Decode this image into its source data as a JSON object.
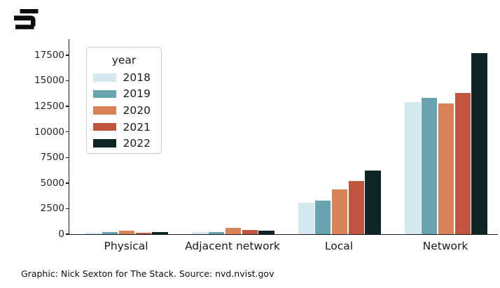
{
  "logo": {
    "label": "The Stack logo"
  },
  "chart_data": {
    "type": "bar",
    "title": "",
    "xlabel": "",
    "ylabel": "",
    "categories": [
      "Physical",
      "Adjacent network",
      "Local",
      "Network"
    ],
    "legend_title": "year",
    "legend_position": "upper-left",
    "grid": false,
    "series": [
      {
        "name": "2018",
        "color": "#d4e8ef",
        "values": [
          140,
          180,
          3100,
          12900
        ]
      },
      {
        "name": "2019",
        "color": "#6aa4b1",
        "values": [
          190,
          230,
          3300,
          13300
        ]
      },
      {
        "name": "2020",
        "color": "#d98257",
        "values": [
          320,
          650,
          4400,
          12800
        ]
      },
      {
        "name": "2021",
        "color": "#c15540",
        "values": [
          120,
          400,
          5200,
          13800
        ]
      },
      {
        "name": "2022",
        "color": "#0d2625",
        "values": [
          210,
          340,
          6200,
          17700
        ]
      }
    ],
    "yticks": [
      0,
      2500,
      5000,
      7500,
      10000,
      12500,
      15000,
      17500
    ],
    "ylim": [
      0,
      19000
    ]
  },
  "caption": "Graphic: Nick Sexton for The Stack. Source: nvd.nvist.gov",
  "colors": {
    "axis": "#1a1a1a",
    "text": "#262626",
    "background": "#ffffff",
    "legend_border": "#cccccc",
    "logo": "#0a0a0a"
  }
}
